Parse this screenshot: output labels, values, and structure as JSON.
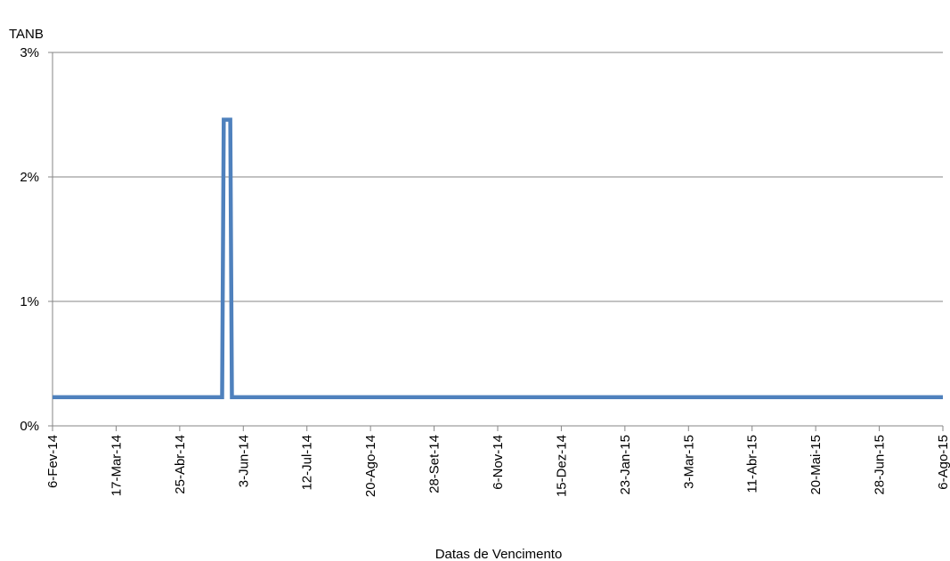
{
  "chart_data": {
    "type": "line",
    "ylabel": "TANB",
    "xlabel": "Datas de Vencimento",
    "ylim": [
      0,
      0.03
    ],
    "y_ticks": [
      {
        "value": 0,
        "label": "0%"
      },
      {
        "value": 0.01,
        "label": "1%"
      },
      {
        "value": 0.02,
        "label": "2%"
      },
      {
        "value": 0.03,
        "label": "3%"
      }
    ],
    "x_range": [
      "2014-02-06",
      "2015-08-06"
    ],
    "x_ticks": [
      {
        "date": "2014-02-06",
        "label": "6-Fev-14"
      },
      {
        "date": "2014-03-17",
        "label": "17-Mar-14"
      },
      {
        "date": "2014-04-25",
        "label": "25-Abr-14"
      },
      {
        "date": "2014-06-03",
        "label": "3-Jun-14"
      },
      {
        "date": "2014-07-12",
        "label": "12-Jul-14"
      },
      {
        "date": "2014-08-20",
        "label": "20-Ago-14"
      },
      {
        "date": "2014-09-28",
        "label": "28-Set-14"
      },
      {
        "date": "2014-11-06",
        "label": "6-Nov-14"
      },
      {
        "date": "2014-12-15",
        "label": "15-Dez-14"
      },
      {
        "date": "2015-01-23",
        "label": "23-Jan-15"
      },
      {
        "date": "2015-03-03",
        "label": "3-Mar-15"
      },
      {
        "date": "2015-04-11",
        "label": "11-Abr-15"
      },
      {
        "date": "2015-05-20",
        "label": "20-Mai-15"
      },
      {
        "date": "2015-06-28",
        "label": "28-Jun-15"
      },
      {
        "date": "2015-08-06",
        "label": "6-Ago-15"
      }
    ],
    "grid": true,
    "legend": "none",
    "series": [
      {
        "color": "#4F81BD",
        "points": [
          {
            "x": "2014-02-06",
            "y": 0.0023
          },
          {
            "x": "2014-05-21",
            "y": 0.0023
          },
          {
            "x": "2014-05-22",
            "y": 0.0246
          },
          {
            "x": "2014-05-26",
            "y": 0.0246
          },
          {
            "x": "2014-05-27",
            "y": 0.0023
          },
          {
            "x": "2015-08-06",
            "y": 0.0023
          }
        ]
      }
    ]
  }
}
